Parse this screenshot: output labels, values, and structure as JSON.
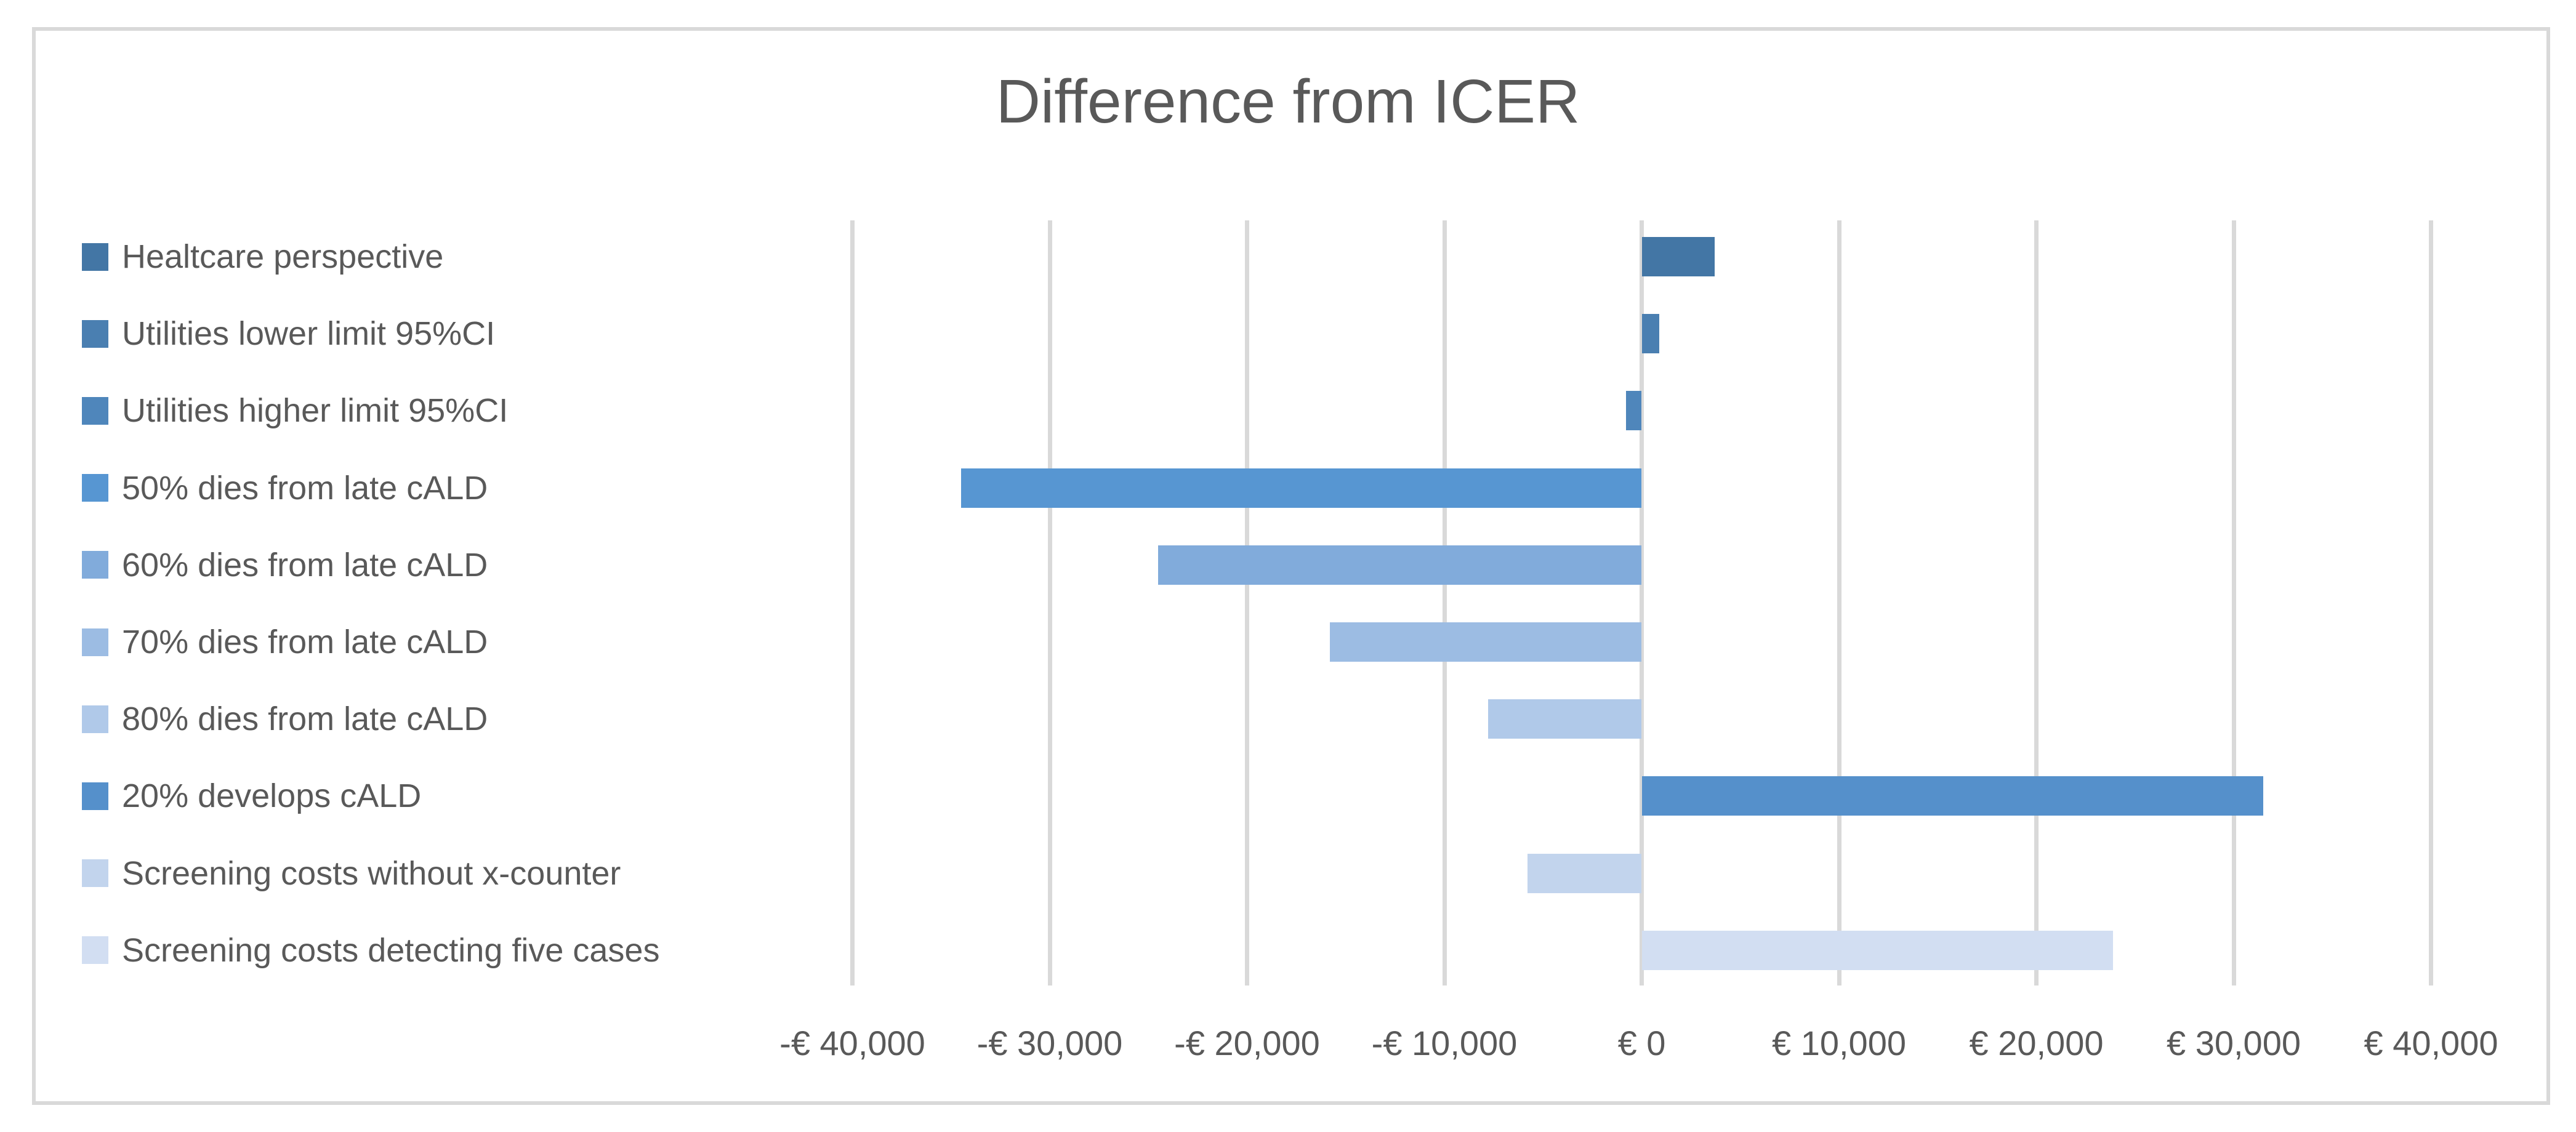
{
  "title": "Difference from ICER",
  "colors": {
    "grid": "#D9D9D9",
    "border": "#D9D9D9",
    "text": "#595959",
    "background": "#FFFFFF"
  },
  "chart_data": {
    "type": "bar",
    "orientation": "horizontal",
    "title": "Difference from ICER",
    "grid": true,
    "legend_position": "left",
    "xlim": [
      -45000,
      45000
    ],
    "categories": [
      "Healtcare perspective",
      "Utilities lower limit 95%CI",
      "Utilities higher limit 95%CI",
      "50% dies from late cALD",
      "60% dies from late cALD",
      "70% dies from late cALD",
      "80% dies from late cALD",
      "20% develops cALD",
      "Screening costs without x-counter",
      "Screening costs detecting five cases"
    ],
    "values": [
      3700,
      900,
      -800,
      -34500,
      -24500,
      -15800,
      -7800,
      31500,
      -5800,
      23900
    ],
    "bar_colors": [
      "#4376A5",
      "#4A7FB1",
      "#4F86BB",
      "#5796D2",
      "#81ABDB",
      "#9CBCE3",
      "#B0C9E9",
      "#5590CB",
      "#C2D4ED",
      "#D2DEF2"
    ],
    "x_tick_values": [
      -40000,
      -30000,
      -20000,
      -10000,
      0,
      10000,
      20000,
      30000,
      40000
    ],
    "x_tick_labels": [
      "-€ 40,000",
      "-€ 30,000",
      "-€ 20,000",
      "-€ 10,000",
      "€ 0",
      "€ 10,000",
      "€ 20,000",
      "€ 30,000",
      "€ 40,000"
    ]
  }
}
